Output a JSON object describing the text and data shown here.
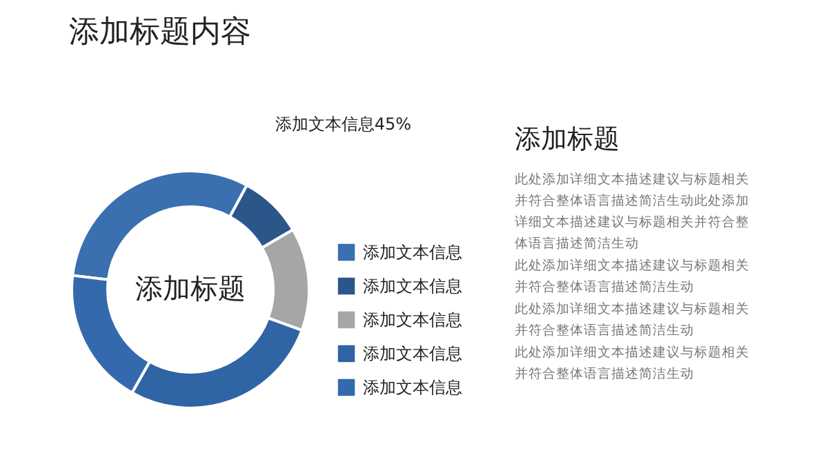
{
  "chart_data": {
    "type": "donut",
    "title": "添加标题内容",
    "categories": [
      "添加文本信息",
      "添加文本信息",
      "添加文本信息",
      "添加文本信息",
      "添加文本信息"
    ],
    "values": [
      31,
      8.7,
      14,
      27.6,
      18.7
    ],
    "colors": [
      "#3a6fb0",
      "#2b568a",
      "#a6a6a6",
      "#2f64a5",
      "#3569ad"
    ],
    "legend": "right",
    "annotations": [
      "添加标题",
      "添加文本信息45%",
      "添加标题",
      "此处添加详细文本描述建议与标题相关并符合整体语言描述简洁生动此处添加详细文本描述建议与标题相关并符合整体语言描述简洁生动",
      "此处添加详细文本描述建议与标题相关并符合整体语言描述简洁生动",
      "此处添加详细文本描述建议与标题相关并符合整体语言描述简洁生动",
      "此处添加详细文本描述建议与标题相关并符合整体语言描述简洁生动"
    ]
  }
}
